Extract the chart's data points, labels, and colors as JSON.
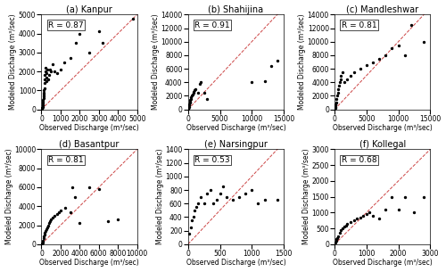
{
  "panels": [
    {
      "title": "(a) Kanpur",
      "R": "R = 0.87",
      "xlim": [
        0,
        5000
      ],
      "ylim": [
        0,
        5000
      ],
      "xticks": [
        0,
        1000,
        2000,
        3000,
        4000,
        5000
      ],
      "yticks": [
        0,
        1000,
        2000,
        3000,
        4000,
        5000
      ],
      "scatter_x": [
        20,
        30,
        40,
        50,
        60,
        70,
        80,
        90,
        100,
        110,
        120,
        130,
        140,
        150,
        160,
        170,
        180,
        200,
        220,
        240,
        260,
        280,
        300,
        350,
        400,
        450,
        500,
        600,
        700,
        800,
        1000,
        1200,
        1500,
        1800,
        2000,
        2500,
        3000,
        3200,
        4800
      ],
      "scatter_y": [
        50,
        80,
        100,
        120,
        200,
        300,
        400,
        500,
        600,
        700,
        800,
        900,
        1000,
        1100,
        1400,
        1600,
        1800,
        2000,
        2200,
        1500,
        1700,
        1900,
        2100,
        1600,
        1800,
        2100,
        2000,
        2400,
        2000,
        1900,
        2100,
        2500,
        2700,
        3500,
        4000,
        3000,
        4100,
        3500,
        4800
      ]
    },
    {
      "title": "(b) Shahijina",
      "R": "R = 0.91",
      "xlim": [
        0,
        15000
      ],
      "ylim": [
        0,
        14000
      ],
      "xticks": [
        0,
        5000,
        10000,
        15000
      ],
      "yticks": [
        0,
        2000,
        4000,
        6000,
        8000,
        10000,
        12000,
        14000
      ],
      "scatter_x": [
        30,
        50,
        80,
        100,
        150,
        200,
        250,
        300,
        350,
        400,
        500,
        600,
        700,
        800,
        900,
        1000,
        1200,
        1500,
        1800,
        2000,
        2500,
        3000,
        10000,
        12000,
        13000,
        14000
      ],
      "scatter_y": [
        50,
        100,
        200,
        400,
        600,
        800,
        1000,
        1200,
        1400,
        1600,
        1800,
        2000,
        2200,
        2400,
        2600,
        2800,
        3000,
        2500,
        3800,
        4000,
        2500,
        1500,
        4000,
        4200,
        6400,
        7200
      ]
    },
    {
      "title": "(c) Mandleshwar",
      "R": "R = 0.81",
      "xlim": [
        0,
        15000
      ],
      "ylim": [
        0,
        14000
      ],
      "xticks": [
        0,
        5000,
        10000,
        15000
      ],
      "yticks": [
        0,
        2000,
        4000,
        6000,
        8000,
        10000,
        12000,
        14000
      ],
      "scatter_x": [
        30,
        50,
        80,
        100,
        150,
        200,
        300,
        400,
        500,
        600,
        700,
        800,
        900,
        1000,
        1200,
        1500,
        2000,
        2500,
        3000,
        4000,
        5000,
        6000,
        7000,
        8000,
        9000,
        10000,
        11000,
        12000,
        14000
      ],
      "scatter_y": [
        100,
        200,
        400,
        600,
        800,
        1000,
        1500,
        2000,
        2500,
        3000,
        3500,
        4000,
        4500,
        5000,
        5500,
        4000,
        4500,
        5000,
        5500,
        6000,
        6500,
        7000,
        7500,
        8000,
        9000,
        9500,
        8000,
        12500,
        10000
      ]
    },
    {
      "title": "(d) Basantpur",
      "R": "R = 0.81",
      "xlim": [
        0,
        10000
      ],
      "ylim": [
        0,
        10000
      ],
      "xticks": [
        0,
        2000,
        4000,
        6000,
        8000,
        10000
      ],
      "yticks": [
        0,
        2000,
        4000,
        6000,
        8000,
        10000
      ],
      "scatter_x": [
        50,
        100,
        150,
        200,
        250,
        300,
        350,
        400,
        500,
        600,
        700,
        800,
        900,
        1000,
        1200,
        1400,
        1600,
        1800,
        2000,
        2500,
        3000,
        3200,
        3500,
        4000,
        5000,
        6000,
        7000,
        8000
      ],
      "scatter_y": [
        100,
        200,
        400,
        600,
        800,
        1000,
        1200,
        1400,
        1600,
        1800,
        2000,
        2200,
        2400,
        2600,
        2800,
        3000,
        3200,
        3400,
        3600,
        3800,
        3400,
        6000,
        5000,
        2200,
        6000,
        5800,
        2400,
        2600
      ]
    },
    {
      "title": "(e) Narsingpur",
      "R": "R = 0.53",
      "xlim": [
        0,
        1500
      ],
      "ylim": [
        0,
        1400
      ],
      "xticks": [
        0,
        500,
        1000,
        1500
      ],
      "yticks": [
        0,
        200,
        400,
        600,
        800,
        1000,
        1200,
        1400
      ],
      "scatter_x": [
        20,
        40,
        60,
        80,
        100,
        130,
        160,
        200,
        250,
        300,
        350,
        400,
        450,
        500,
        550,
        600,
        700,
        800,
        900,
        1000,
        1100,
        1200,
        1400
      ],
      "scatter_y": [
        150,
        250,
        350,
        400,
        500,
        550,
        600,
        700,
        600,
        750,
        800,
        600,
        650,
        750,
        850,
        700,
        650,
        700,
        750,
        800,
        600,
        650,
        650
      ]
    },
    {
      "title": "(f) Kollegal",
      "R": "R = 0.68",
      "xlim": [
        0,
        3000
      ],
      "ylim": [
        0,
        3000
      ],
      "xticks": [
        0,
        1000,
        2000,
        3000
      ],
      "yticks": [
        0,
        500,
        1000,
        1500,
        2000,
        2500,
        3000
      ],
      "scatter_x": [
        20,
        40,
        60,
        80,
        100,
        150,
        200,
        250,
        300,
        350,
        400,
        500,
        600,
        700,
        800,
        900,
        1000,
        1100,
        1200,
        1400,
        1600,
        1800,
        2000,
        2200,
        2500,
        2800
      ],
      "scatter_y": [
        50,
        100,
        150,
        200,
        250,
        350,
        450,
        500,
        550,
        600,
        650,
        700,
        750,
        800,
        850,
        900,
        950,
        1000,
        900,
        800,
        1100,
        1500,
        1100,
        1500,
        1000,
        1500
      ]
    }
  ],
  "scatter_color": "black",
  "scatter_size": 2,
  "line_color": "#cc4444",
  "line_style": "--",
  "xlabel": "Observed Discharge (m³/sec)",
  "ylabel": "Modeled Discharge (m³/sec)",
  "fig_bg": "white",
  "title_fontsize": 7,
  "label_fontsize": 5.5,
  "tick_fontsize": 5.5,
  "R_fontsize": 6.5
}
